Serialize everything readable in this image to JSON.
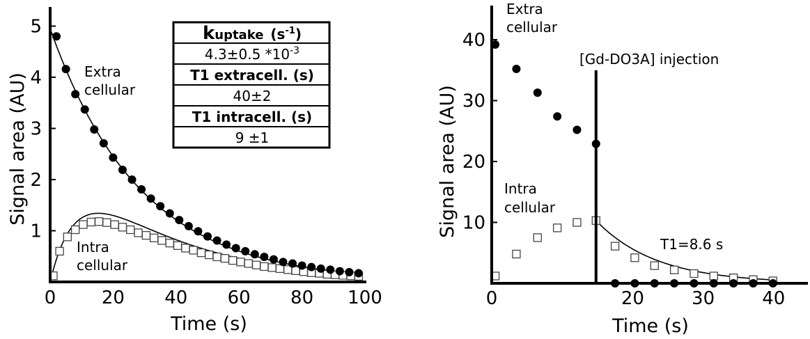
{
  "chart_data": [
    {
      "type": "scatter",
      "xlabel": "Time (s)",
      "ylabel": "Signal area (AU)",
      "xlim": [
        0,
        100
      ],
      "ylim": [
        0,
        5
      ],
      "xticks": [
        "0",
        "20",
        "40",
        "60",
        "80",
        "100"
      ],
      "yticks": [
        "1",
        "2",
        "3",
        "4",
        "5"
      ],
      "series": [
        {
          "name": "Extra cellular",
          "marker": "filled-circle",
          "x": [
            2,
            5,
            8,
            11,
            14,
            17,
            20,
            23,
            26,
            29,
            32,
            35,
            38,
            41,
            44,
            47,
            50,
            53,
            56,
            59,
            62,
            65,
            68,
            71,
            74,
            77,
            80,
            83,
            86,
            89,
            92,
            95,
            98
          ],
          "values": [
            4.8,
            4.16,
            3.67,
            3.37,
            2.98,
            2.71,
            2.43,
            2.19,
            2.0,
            1.81,
            1.63,
            1.48,
            1.34,
            1.21,
            1.09,
            0.99,
            0.89,
            0.81,
            0.73,
            0.66,
            0.6,
            0.54,
            0.49,
            0.44,
            0.39,
            0.36,
            0.32,
            0.29,
            0.26,
            0.24,
            0.21,
            0.19,
            0.17
          ]
        },
        {
          "name": "Intra cellular",
          "marker": "open-square",
          "x": [
            1,
            3,
            5.5,
            8,
            10.5,
            13,
            15.5,
            18,
            20.5,
            23,
            25.5,
            28,
            30.5,
            33,
            35.5,
            38,
            40.5,
            43,
            45.5,
            48,
            50.5,
            53,
            55.5,
            58,
            60.5,
            63,
            65.5,
            68,
            70.5,
            73,
            75.5,
            78,
            80.5,
            83,
            85.5,
            88,
            90.5,
            93,
            95.5,
            98
          ],
          "values": [
            0.12,
            0.6,
            0.88,
            1.02,
            1.12,
            1.17,
            1.18,
            1.16,
            1.12,
            1.07,
            1.02,
            0.96,
            0.91,
            0.86,
            0.81,
            0.76,
            0.71,
            0.66,
            0.62,
            0.57,
            0.53,
            0.49,
            0.46,
            0.42,
            0.39,
            0.36,
            0.33,
            0.3,
            0.28,
            0.26,
            0.24,
            0.22,
            0.2,
            0.18,
            0.17,
            0.15,
            0.14,
            0.13,
            0.12,
            0.11
          ]
        }
      ],
      "annotations": {
        "extra_label": [
          "Extra",
          "cellular"
        ],
        "intra_label": [
          "Intra",
          "cellular"
        ]
      },
      "table": {
        "row1_main": "k",
        "row1_sub": "uptake",
        "row1_unit": "(s",
        "row1_unit_sup": "-1",
        "row1_unit_close": ")",
        "row2_main": "4.3±0.5 *10",
        "row2_sup": "-3",
        "row3": "T1 extracell. (s)",
        "row4": "40±2",
        "row5": "T1 intracell. (s)",
        "row6": "9 ±1"
      }
    },
    {
      "type": "scatter",
      "xlabel": "Time (s)",
      "ylabel": "Signal area (AU)",
      "xlim": [
        0,
        45
      ],
      "ylim": [
        0,
        45
      ],
      "xticks": [
        "0",
        "20",
        "30",
        "40"
      ],
      "yticks": [
        "10",
        "20",
        "30",
        "40"
      ],
      "series": [
        {
          "name": "Extra cellular",
          "marker": "filled-circle",
          "x": [
            0.5,
            3.5,
            6.5,
            9.3,
            12.1,
            14.8,
            17.5,
            20.3,
            23.1,
            25.9,
            28.7,
            31.5,
            34.3,
            37.1,
            39.9
          ],
          "values": [
            39.2,
            35.2,
            31.3,
            27.4,
            25.2,
            22.9,
            0,
            0,
            0,
            0,
            0,
            0,
            0,
            0,
            0
          ]
        },
        {
          "name": "Intra cellular",
          "marker": "open-square",
          "x": [
            0.5,
            3.5,
            6.5,
            9.3,
            12.1,
            14.8,
            17.5,
            20.3,
            23.1,
            25.9,
            28.7,
            31.5,
            34.3,
            37.1,
            39.9
          ],
          "values": [
            1.2,
            4.8,
            7.5,
            9.1,
            10.0,
            10.3,
            6.1,
            4.2,
            2.9,
            2.2,
            1.6,
            1.2,
            0.9,
            0.6,
            0.4
          ]
        }
      ],
      "injection_time": 14.8,
      "annotations": {
        "injection": "[Gd-DO3A] injection",
        "t1": "T1=8.6 s",
        "extra_label": [
          "Extra",
          "cellular"
        ],
        "intra_label": [
          "Intra",
          "cellular"
        ]
      }
    }
  ]
}
